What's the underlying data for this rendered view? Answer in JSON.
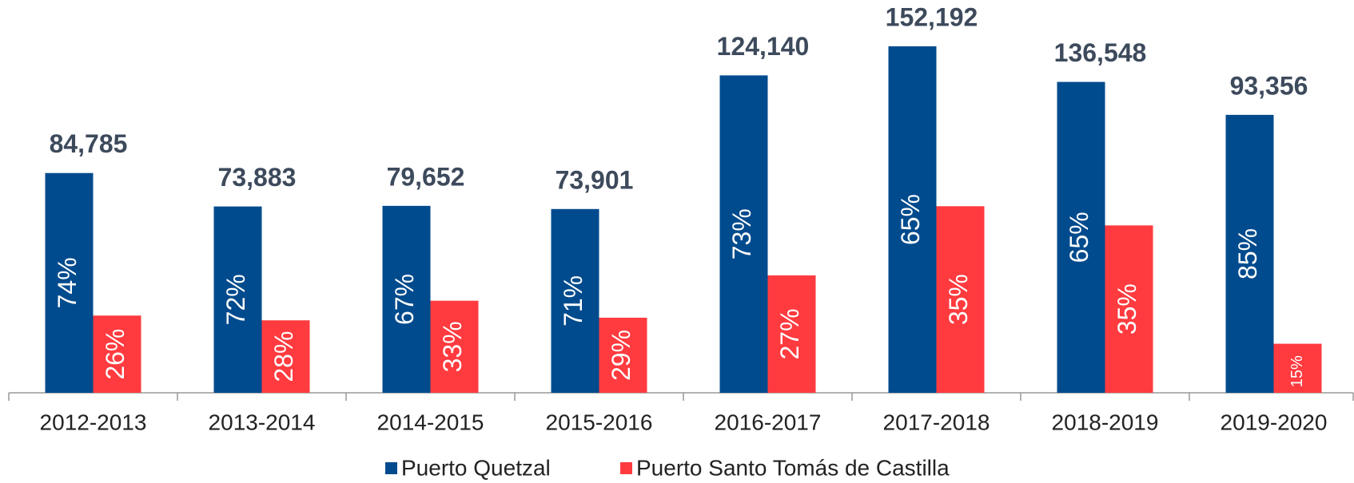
{
  "chart_data": {
    "type": "bar",
    "categories": [
      "2012-2013",
      "2013-2014",
      "2014-2015",
      "2015-2016",
      "2016-2017",
      "2017-2018",
      "2018-2019",
      "2019-2020"
    ],
    "totals": [
      84785,
      73883,
      79652,
      73901,
      124140,
      152192,
      136548,
      93356
    ],
    "total_labels": [
      "84,785",
      "73,883",
      "79,652",
      "73,901",
      "124,140",
      "152,192",
      "136,548",
      "93,356"
    ],
    "series": [
      {
        "name": "Puerto Quetzal",
        "color": "#004b8d",
        "values": [
          74,
          72,
          67,
          71,
          73,
          65,
          65,
          85
        ],
        "value_labels": [
          "74%",
          "72%",
          "67%",
          "71%",
          "73%",
          "65%",
          "65%",
          "85%"
        ]
      },
      {
        "name": "Puerto Santo Tomás de Castilla",
        "color": "#ff3b3f",
        "values": [
          26,
          28,
          33,
          29,
          27,
          35,
          35,
          15
        ],
        "value_labels": [
          "26%",
          "28%",
          "33%",
          "29%",
          "27%",
          "35%",
          "35%",
          "15%"
        ]
      }
    ],
    "legend": "bottom"
  }
}
